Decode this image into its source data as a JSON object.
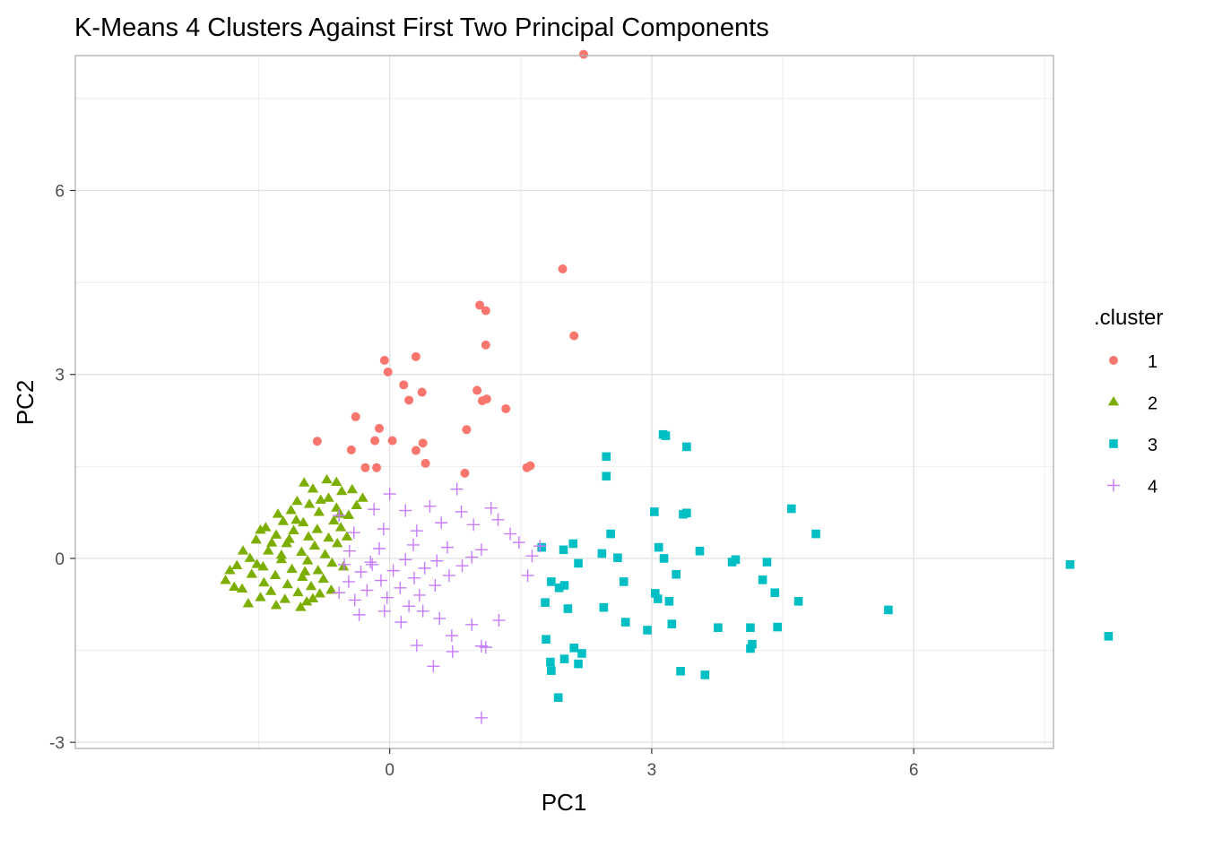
{
  "chart_data": {
    "type": "scatter",
    "title": "K-Means 4 Clusters Against First Two Principal Components",
    "xlabel": "PC1",
    "ylabel": "PC2",
    "xlim": [
      -3.6,
      7.6
    ],
    "ylim": [
      -3.1,
      8.2
    ],
    "x_ticks": [
      0,
      3,
      6
    ],
    "x_tick_labels": [
      "0",
      "3",
      "6"
    ],
    "y_ticks": [
      -3,
      0,
      3,
      6
    ],
    "y_tick_labels": [
      "-3",
      "0",
      "3",
      "6"
    ],
    "grid": true,
    "legend": {
      "title": ".cluster",
      "position": "right"
    },
    "series": [
      {
        "name": "1",
        "color": "#F8766D",
        "shape": "circle",
        "points": [
          [
            2.22,
            8.22
          ],
          [
            1.98,
            4.72
          ],
          [
            2.11,
            3.63
          ],
          [
            1.03,
            4.13
          ],
          [
            1.1,
            4.04
          ],
          [
            1.1,
            3.48
          ],
          [
            0.3,
            3.29
          ],
          [
            -0.06,
            3.23
          ],
          [
            -0.02,
            3.04
          ],
          [
            0.16,
            2.83
          ],
          [
            0.37,
            2.71
          ],
          [
            0.22,
            2.58
          ],
          [
            1.0,
            2.74
          ],
          [
            1.06,
            2.57
          ],
          [
            1.11,
            2.6
          ],
          [
            1.33,
            2.44
          ],
          [
            -0.39,
            2.31
          ],
          [
            -0.12,
            2.12
          ],
          [
            0.88,
            2.1
          ],
          [
            -0.83,
            1.91
          ],
          [
            -0.17,
            1.92
          ],
          [
            0.03,
            1.92
          ],
          [
            0.38,
            1.88
          ],
          [
            -0.44,
            1.77
          ],
          [
            0.3,
            1.76
          ],
          [
            -0.28,
            1.48
          ],
          [
            -0.15,
            1.48
          ],
          [
            0.41,
            1.55
          ],
          [
            0.86,
            1.39
          ],
          [
            1.57,
            1.48
          ],
          [
            1.61,
            1.51
          ]
        ]
      },
      {
        "name": "2",
        "color": "#7CAE00",
        "shape": "triangle",
        "points": [
          [
            -0.72,
            1.28
          ],
          [
            -0.98,
            1.23
          ],
          [
            -0.88,
            1.13
          ],
          [
            -0.55,
            1.09
          ],
          [
            -0.43,
            1.12
          ],
          [
            -0.31,
            0.98
          ],
          [
            -0.7,
            0.98
          ],
          [
            -1.06,
            0.93
          ],
          [
            -0.92,
            0.88
          ],
          [
            -0.61,
            0.82
          ],
          [
            -0.38,
            0.86
          ],
          [
            -1.28,
            0.72
          ],
          [
            -1.13,
            0.78
          ],
          [
            -0.81,
            0.75
          ],
          [
            -0.47,
            0.7
          ],
          [
            -1.22,
            0.6
          ],
          [
            -0.99,
            0.58
          ],
          [
            -0.64,
            0.61
          ],
          [
            -1.42,
            0.5
          ],
          [
            -1.1,
            0.45
          ],
          [
            -0.83,
            0.47
          ],
          [
            -0.56,
            0.5
          ],
          [
            -1.3,
            0.38
          ],
          [
            -0.93,
            0.35
          ],
          [
            -0.7,
            0.33
          ],
          [
            -1.53,
            0.3
          ],
          [
            -1.18,
            0.24
          ],
          [
            -0.86,
            0.2
          ],
          [
            -0.6,
            0.24
          ],
          [
            -1.39,
            0.12
          ],
          [
            -1.01,
            0.1
          ],
          [
            -0.74,
            0.06
          ],
          [
            -1.6,
            0.0
          ],
          [
            -1.24,
            -0.02
          ],
          [
            -0.94,
            -0.04
          ],
          [
            -0.66,
            -0.08
          ],
          [
            -1.75,
            -0.12
          ],
          [
            -1.45,
            -0.14
          ],
          [
            -1.12,
            -0.18
          ],
          [
            -0.82,
            -0.2
          ],
          [
            -1.58,
            -0.26
          ],
          [
            -1.31,
            -0.28
          ],
          [
            -1.0,
            -0.31
          ],
          [
            -0.76,
            -0.34
          ],
          [
            -1.88,
            -0.36
          ],
          [
            -1.44,
            -0.4
          ],
          [
            -1.17,
            -0.43
          ],
          [
            -0.9,
            -0.46
          ],
          [
            -1.69,
            -0.5
          ],
          [
            -1.36,
            -0.54
          ],
          [
            -1.05,
            -0.56
          ],
          [
            -0.8,
            -0.58
          ],
          [
            -1.48,
            -0.64
          ],
          [
            -1.2,
            -0.67
          ],
          [
            -0.95,
            -0.71
          ],
          [
            -1.62,
            -0.74
          ],
          [
            -1.3,
            -0.77
          ],
          [
            -1.02,
            -0.8
          ],
          [
            -1.78,
            -0.47
          ],
          [
            -1.52,
            -0.1
          ],
          [
            -1.35,
            0.25
          ],
          [
            -1.07,
            0.62
          ],
          [
            -0.79,
            0.95
          ],
          [
            -0.49,
            0.35
          ],
          [
            -0.53,
            -0.14
          ],
          [
            -0.67,
            -0.52
          ],
          [
            -1.24,
            0.05
          ],
          [
            -1.48,
            0.46
          ],
          [
            -0.88,
            -0.66
          ],
          [
            -0.57,
            0.72
          ],
          [
            -1.15,
            0.31
          ],
          [
            -0.97,
            -0.22
          ],
          [
            -1.83,
            -0.2
          ],
          [
            -1.68,
            0.12
          ],
          [
            -0.61,
            1.24
          ]
        ]
      },
      {
        "name": "3",
        "color": "#00BFC4",
        "shape": "square",
        "points": [
          [
            3.13,
            2.02
          ],
          [
            3.16,
            2.0
          ],
          [
            3.4,
            1.82
          ],
          [
            2.48,
            1.66
          ],
          [
            2.48,
            1.34
          ],
          [
            4.6,
            0.81
          ],
          [
            3.03,
            0.76
          ],
          [
            3.36,
            0.72
          ],
          [
            3.4,
            0.74
          ],
          [
            4.88,
            0.4
          ],
          [
            2.53,
            0.4
          ],
          [
            2.1,
            0.24
          ],
          [
            3.08,
            0.18
          ],
          [
            3.55,
            0.12
          ],
          [
            1.74,
            0.18
          ],
          [
            1.99,
            0.14
          ],
          [
            2.43,
            0.08
          ],
          [
            2.61,
            0.01
          ],
          [
            3.14,
            0.0
          ],
          [
            3.96,
            -0.02
          ],
          [
            3.92,
            -0.06
          ],
          [
            4.32,
            -0.06
          ],
          [
            2.16,
            -0.08
          ],
          [
            3.28,
            -0.26
          ],
          [
            4.27,
            -0.35
          ],
          [
            1.85,
            -0.38
          ],
          [
            2.68,
            -0.38
          ],
          [
            1.94,
            -0.48
          ],
          [
            2.0,
            -0.44
          ],
          [
            3.04,
            -0.57
          ],
          [
            4.41,
            -0.56
          ],
          [
            3.07,
            -0.66
          ],
          [
            3.2,
            -0.7
          ],
          [
            1.78,
            -0.72
          ],
          [
            4.68,
            -0.7
          ],
          [
            2.45,
            -0.8
          ],
          [
            2.04,
            -0.82
          ],
          [
            5.71,
            -0.84
          ],
          [
            2.7,
            -1.04
          ],
          [
            3.23,
            -1.07
          ],
          [
            2.95,
            -1.17
          ],
          [
            3.76,
            -1.13
          ],
          [
            4.13,
            -1.13
          ],
          [
            4.44,
            -1.12
          ],
          [
            1.79,
            -1.32
          ],
          [
            4.15,
            -1.4
          ],
          [
            4.13,
            -1.47
          ],
          [
            2.11,
            -1.46
          ],
          [
            2.2,
            -1.55
          ],
          [
            1.84,
            -1.69
          ],
          [
            2.0,
            -1.64
          ],
          [
            2.16,
            -1.72
          ],
          [
            1.85,
            -1.83
          ],
          [
            3.33,
            -1.84
          ],
          [
            3.61,
            -1.9
          ],
          [
            1.93,
            -2.27
          ],
          [
            7.79,
            -0.1
          ],
          [
            8.23,
            -1.27
          ]
        ]
      },
      {
        "name": "4",
        "color": "#C77CFF",
        "shape": "plus",
        "points": [
          [
            0.77,
            1.13
          ],
          [
            0.0,
            1.05
          ],
          [
            -0.58,
            0.7
          ],
          [
            -0.18,
            0.8
          ],
          [
            0.18,
            0.78
          ],
          [
            0.46,
            0.85
          ],
          [
            0.82,
            0.76
          ],
          [
            1.16,
            0.82
          ],
          [
            1.24,
            0.63
          ],
          [
            0.96,
            0.55
          ],
          [
            0.59,
            0.58
          ],
          [
            0.31,
            0.45
          ],
          [
            -0.07,
            0.48
          ],
          [
            -0.41,
            0.42
          ],
          [
            1.38,
            0.4
          ],
          [
            1.72,
            0.2
          ],
          [
            1.48,
            0.26
          ],
          [
            1.05,
            0.14
          ],
          [
            0.66,
            0.18
          ],
          [
            0.27,
            0.22
          ],
          [
            -0.12,
            0.16
          ],
          [
            -0.46,
            0.12
          ],
          [
            1.63,
            0.04
          ],
          [
            0.94,
            0.02
          ],
          [
            0.54,
            -0.04
          ],
          [
            0.18,
            -0.02
          ],
          [
            -0.22,
            -0.06
          ],
          [
            -0.52,
            -0.1
          ],
          [
            0.83,
            -0.12
          ],
          [
            0.4,
            -0.16
          ],
          [
            0.04,
            -0.2
          ],
          [
            -0.33,
            -0.22
          ],
          [
            1.58,
            -0.28
          ],
          [
            0.68,
            -0.28
          ],
          [
            0.28,
            -0.32
          ],
          [
            -0.1,
            -0.36
          ],
          [
            -0.47,
            -0.38
          ],
          [
            0.52,
            -0.44
          ],
          [
            0.12,
            -0.48
          ],
          [
            -0.26,
            -0.52
          ],
          [
            -0.58,
            -0.56
          ],
          [
            0.34,
            -0.6
          ],
          [
            -0.03,
            -0.64
          ],
          [
            -0.4,
            -0.68
          ],
          [
            -0.06,
            -0.86
          ],
          [
            -0.35,
            -0.92
          ],
          [
            0.13,
            -1.04
          ],
          [
            0.57,
            -0.98
          ],
          [
            0.94,
            -1.08
          ],
          [
            1.25,
            -1.01
          ],
          [
            0.71,
            -1.26
          ],
          [
            1.05,
            -1.43
          ],
          [
            1.1,
            -1.45
          ],
          [
            0.31,
            -1.42
          ],
          [
            0.72,
            -1.52
          ],
          [
            0.5,
            -1.76
          ],
          [
            1.05,
            -2.6
          ],
          [
            0.38,
            -0.86
          ],
          [
            -0.2,
            -0.1
          ],
          [
            0.22,
            -0.78
          ]
        ]
      }
    ]
  }
}
